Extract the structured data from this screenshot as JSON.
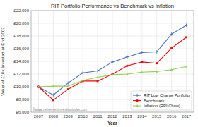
{
  "chart_data": {
    "type": "line",
    "title": "RIT Portfolio Performance vs Benchmark vs Inflation",
    "xlabel": "Year",
    "ylabel": "Value of £10k Invested at End 2007",
    "x": [
      2007,
      2008,
      2009,
      2010,
      2011,
      2012,
      2013,
      2014,
      2015,
      2016,
      2017
    ],
    "series": [
      {
        "name": "RIT Low Charge Portfolio",
        "color": "#4472C4",
        "marker": "plus",
        "values": [
          10000,
          8700,
          10600,
          12200,
          12500,
          13900,
          14700,
          15400,
          15500,
          18300,
          19700
        ]
      },
      {
        "name": "Benchmark",
        "color": "#FF0000",
        "marker": "square",
        "values": [
          10000,
          7900,
          9600,
          10900,
          10900,
          12000,
          13300,
          13900,
          13700,
          16100,
          17800
        ]
      },
      {
        "name": "Inflation (RPI Chaw)",
        "color": "#92D050",
        "marker": "triangle",
        "values": [
          10000,
          10100,
          10100,
          11000,
          11500,
          11900,
          12000,
          12300,
          12400,
          12700,
          13200
        ]
      }
    ],
    "xlim": [
      2006.5,
      2017.5
    ],
    "xticks": [
      2007,
      2008,
      2009,
      2010,
      2011,
      2012,
      2013,
      2014,
      2015,
      2016,
      2017
    ],
    "ylim": [
      6000,
      22000
    ],
    "yticks": [
      {
        "value": 6000,
        "label": "£6,000"
      },
      {
        "value": 8000,
        "label": "£8,000"
      },
      {
        "value": 10000,
        "label": "£10,000"
      },
      {
        "value": 12000,
        "label": "£12,000"
      },
      {
        "value": 14000,
        "label": "£14,000"
      },
      {
        "value": 16000,
        "label": "£16,000"
      },
      {
        "value": 18000,
        "label": "£18,000"
      },
      {
        "value": 20000,
        "label": "£20,000"
      },
      {
        "value": 22000,
        "label": "£22,000"
      }
    ],
    "grid": true,
    "legend": "lower right",
    "annotations": [
      {
        "text": "©www.retirementinvestingtoday.com"
      }
    ]
  }
}
